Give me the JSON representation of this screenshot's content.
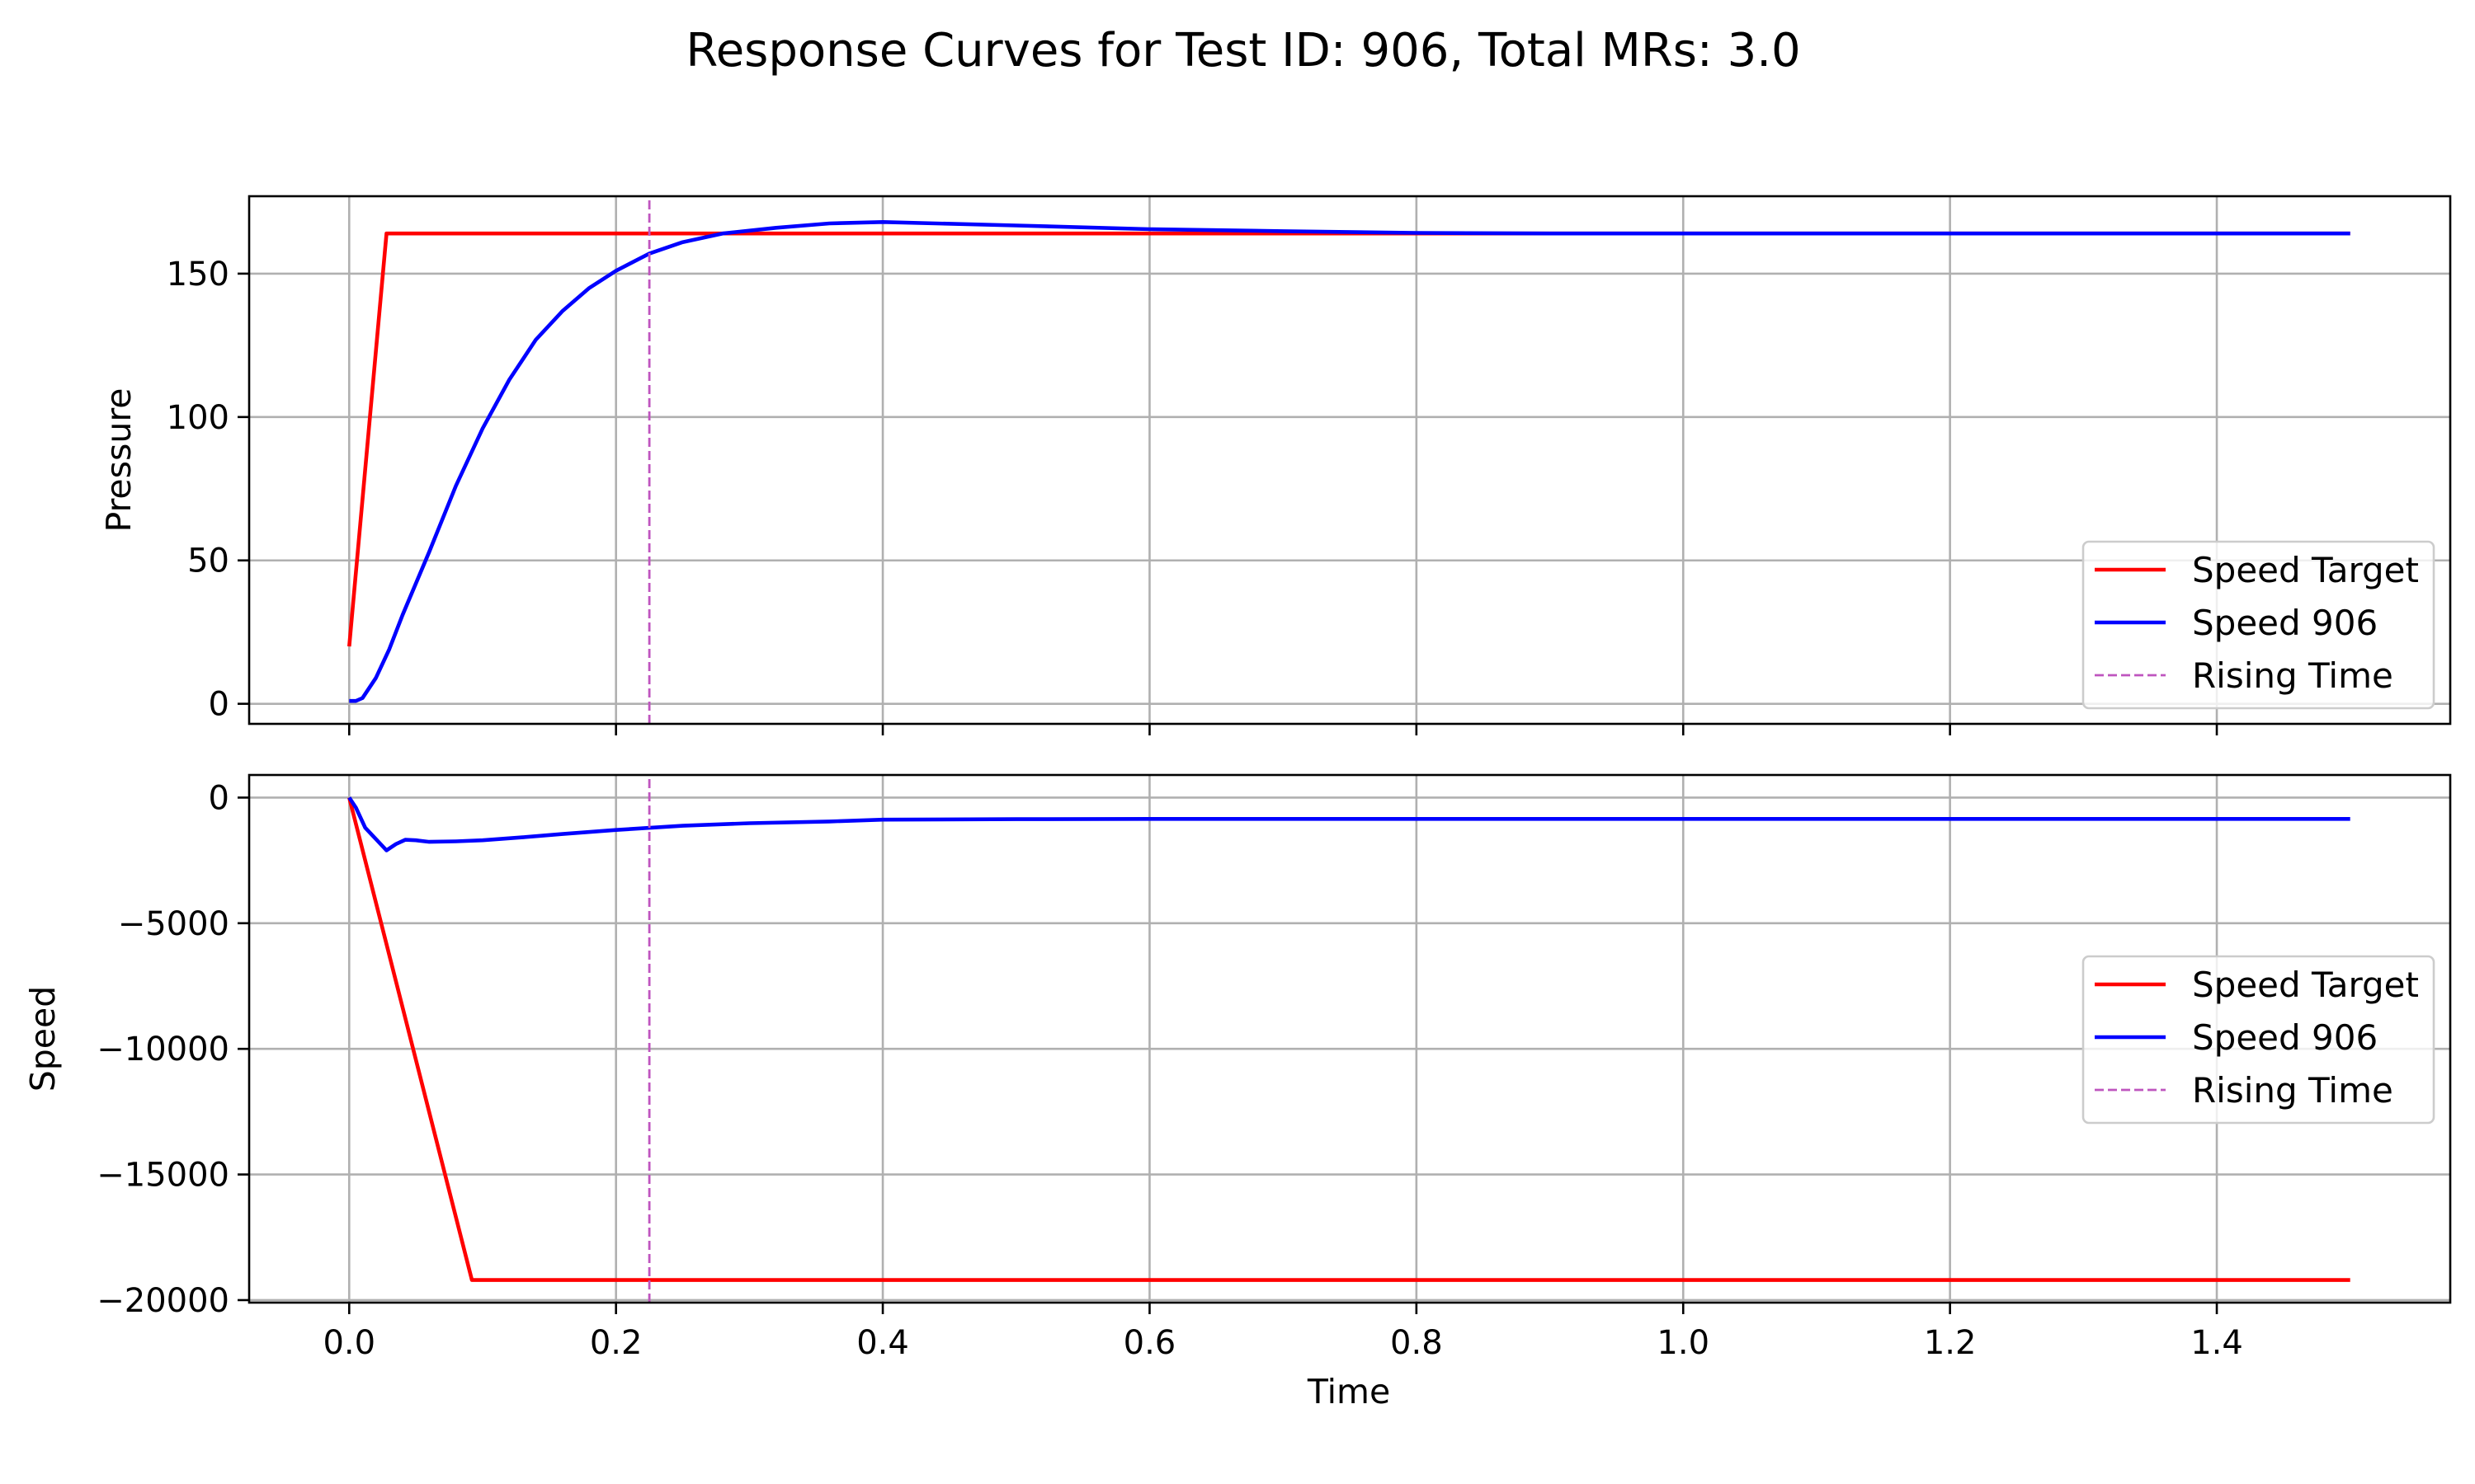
{
  "chart_data": {
    "type": "line",
    "title": "Response Curves for Test ID: 906, Total MRs: 3.0",
    "xlabel": "Time",
    "xlim": [
      -0.075,
      1.575
    ],
    "xticks": [
      0.0,
      0.2,
      0.4,
      0.6,
      0.8,
      1.0,
      1.2,
      1.4
    ],
    "xtick_labels": [
      "0.0",
      "0.2",
      "0.4",
      "0.6",
      "0.8",
      "1.0",
      "1.2",
      "1.4"
    ],
    "grid": true,
    "rising_time": 0.225,
    "colors": {
      "target": "#ff0000",
      "response": "#0000ff",
      "rising": "#bf55bf"
    },
    "subplots": [
      {
        "ylabel": "Pressure",
        "ylim": [
          -7,
          177
        ],
        "yticks": [
          0,
          50,
          100,
          150
        ],
        "ytick_labels": [
          "0",
          "50",
          "100",
          "150"
        ],
        "legend_position": "lower right",
        "series": [
          {
            "name": "Speed Target",
            "style": "solid",
            "color": "#ff0000",
            "x": [
              0,
              0.028,
              1.5
            ],
            "y": [
              20,
              164,
              164
            ]
          },
          {
            "name": "Speed 906",
            "style": "solid",
            "color": "#0000ff",
            "x": [
              0,
              0.005,
              0.01,
              0.02,
              0.03,
              0.04,
              0.06,
              0.08,
              0.1,
              0.12,
              0.14,
              0.16,
              0.18,
              0.2,
              0.225,
              0.25,
              0.28,
              0.32,
              0.36,
              0.4,
              0.44,
              0.5,
              0.6,
              0.7,
              0.8,
              0.9,
              1.0,
              1.2,
              1.5
            ],
            "y": [
              1,
              1,
              2,
              9,
              19,
              31,
              53,
              76,
              96,
              113,
              127,
              137,
              145,
              151,
              157,
              161,
              164,
              166,
              167.5,
              168,
              167.5,
              166.8,
              165.5,
              164.8,
              164.2,
              164,
              164,
              164,
              164
            ]
          },
          {
            "name": "Rising Time",
            "style": "dashed",
            "color": "#bf55bf",
            "x": [
              0.225,
              0.225
            ],
            "y": [
              -7,
              177
            ]
          }
        ]
      },
      {
        "ylabel": "Speed",
        "ylim": [
          -20100,
          900
        ],
        "yticks": [
          0,
          -5000,
          -10000,
          -15000,
          -20000
        ],
        "ytick_labels": [
          "0",
          "−5000",
          "−10000",
          "−15000",
          "−20000"
        ],
        "legend_position": "center right",
        "series": [
          {
            "name": "Speed Target",
            "style": "solid",
            "color": "#ff0000",
            "x": [
              0,
              0.092,
              1.5
            ],
            "y": [
              0,
              -19200,
              -19200
            ]
          },
          {
            "name": "Speed 906",
            "style": "solid",
            "color": "#0000ff",
            "x": [
              0,
              0.005,
              0.012,
              0.02,
              0.028,
              0.035,
              0.042,
              0.05,
              0.06,
              0.08,
              0.1,
              0.13,
              0.16,
              0.2,
              0.25,
              0.3,
              0.36,
              0.4,
              0.5,
              0.6,
              0.8,
              1.0,
              1.2,
              1.5
            ],
            "y": [
              0,
              -400,
              -1200,
              -1650,
              -2100,
              -1850,
              -1680,
              -1700,
              -1760,
              -1740,
              -1700,
              -1580,
              -1450,
              -1290,
              -1120,
              -1020,
              -950,
              -880,
              -860,
              -850,
              -850,
              -850,
              -850,
              -850
            ]
          },
          {
            "name": "Rising Time",
            "style": "dashed",
            "color": "#bf55bf",
            "x": [
              0.225,
              0.225
            ],
            "y": [
              -20100,
              900
            ]
          }
        ]
      }
    ]
  }
}
